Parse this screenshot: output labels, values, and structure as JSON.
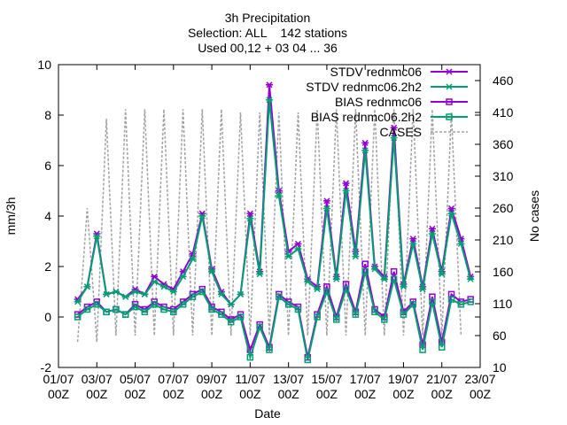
{
  "title_lines": [
    "3h Precipitation",
    "Selection: ALL    142 stations",
    "Used 00,12 + 03 04 ... 36"
  ],
  "chart_data": {
    "type": "line",
    "title": "3h Precipitation",
    "subtitle": [
      "Selection: ALL    142 stations",
      "Used 00,12 + 03 04 ... 36"
    ],
    "xlabel": "Date",
    "ylabel": "mm/3h",
    "y2label": "No cases",
    "xlim": [
      0,
      22
    ],
    "ylim": [
      -2,
      10
    ],
    "y2lim": [
      10,
      485
    ],
    "x_ticks": [
      "01/07 00Z",
      "03/07 00Z",
      "05/07 00Z",
      "07/07 00Z",
      "09/07 00Z",
      "11/07 00Z",
      "13/07 00Z",
      "15/07 00Z",
      "17/07 00Z",
      "19/07 00Z",
      "21/07 00Z",
      "23/07 00Z"
    ],
    "y_ticks": [
      -2,
      0,
      2,
      4,
      6,
      8,
      10
    ],
    "y2_ticks": [
      10,
      60,
      110,
      160,
      210,
      260,
      310,
      360,
      410,
      460
    ],
    "legend_position": "top-right",
    "series": [
      {
        "name": "STDV rednmc06",
        "color": "#9400d3",
        "marker": "x",
        "axis": "y",
        "x": [
          1,
          1.5,
          2,
          2.5,
          3,
          3.5,
          4,
          4.5,
          5,
          5.5,
          6,
          6.5,
          7,
          7.5,
          8,
          8.5,
          9,
          9.5,
          10,
          10.5,
          11,
          11.5,
          12,
          12.5,
          13,
          13.5,
          14,
          14.5,
          15,
          15.5,
          16,
          16.5,
          17,
          17.5,
          18,
          18.5,
          19,
          19.5,
          20,
          20.5,
          21,
          21.5
        ],
        "y": [
          0.7,
          1.2,
          3.3,
          0.9,
          1.0,
          0.8,
          1.1,
          0.9,
          1.6,
          1.3,
          1.1,
          1.8,
          2.5,
          4.1,
          1.9,
          1.0,
          0.5,
          0.9,
          4.1,
          1.8,
          9.2,
          5.0,
          2.6,
          2.9,
          1.5,
          1.2,
          4.6,
          1.6,
          5.3,
          2.6,
          6.9,
          2.0,
          1.6,
          7.5,
          1.3,
          3.1,
          1.2,
          3.5,
          1.8,
          4.3,
          3.1,
          1.6
        ]
      },
      {
        "name": "STDV rednmc06.2h2",
        "color": "#009e73",
        "marker": "x",
        "axis": "y",
        "x": [
          1,
          1.5,
          2,
          2.5,
          3,
          3.5,
          4,
          4.5,
          5,
          5.5,
          6,
          6.5,
          7,
          7.5,
          8,
          8.5,
          9,
          9.5,
          10,
          10.5,
          11,
          11.5,
          12,
          12.5,
          13,
          13.5,
          14,
          14.5,
          15,
          15.5,
          16,
          16.5,
          17,
          17.5,
          18,
          18.5,
          19,
          19.5,
          20,
          20.5,
          21,
          21.5
        ],
        "y": [
          0.6,
          1.2,
          3.2,
          0.9,
          1.0,
          0.8,
          1.0,
          0.9,
          1.4,
          1.2,
          1.0,
          1.6,
          2.3,
          4.0,
          1.8,
          0.9,
          0.5,
          0.9,
          3.9,
          1.7,
          8.6,
          4.8,
          2.4,
          2.7,
          1.4,
          1.1,
          4.3,
          1.5,
          5.0,
          2.4,
          6.6,
          1.9,
          1.5,
          7.1,
          1.2,
          2.9,
          1.1,
          3.3,
          1.7,
          4.1,
          2.9,
          1.5
        ]
      },
      {
        "name": "BIAS rednmc06",
        "color": "#9400d3",
        "marker": "square",
        "axis": "y",
        "x": [
          1,
          1.5,
          2,
          2.5,
          3,
          3.5,
          4,
          4.5,
          5,
          5.5,
          6,
          6.5,
          7,
          7.5,
          8,
          8.5,
          9,
          9.5,
          10,
          10.5,
          11,
          11.5,
          12,
          12.5,
          13,
          13.5,
          14,
          14.5,
          15,
          15.5,
          16,
          16.5,
          17,
          17.5,
          18,
          18.5,
          19,
          19.5,
          20,
          20.5,
          21,
          21.5
        ],
        "y": [
          0.1,
          0.4,
          0.6,
          0.2,
          0.3,
          0.1,
          0.5,
          0.3,
          0.6,
          0.4,
          0.3,
          0.6,
          0.9,
          1.1,
          0.4,
          0.2,
          -0.1,
          0.1,
          -1.3,
          -0.3,
          -1.2,
          0.9,
          0.6,
          0.4,
          -1.6,
          0.1,
          1.2,
          0.0,
          1.3,
          0.2,
          2.1,
          0.3,
          0.0,
          1.8,
          0.2,
          0.6,
          -1.1,
          0.8,
          -1.0,
          0.9,
          0.6,
          0.7
        ]
      },
      {
        "name": "BIAS rednmc06.2h2",
        "color": "#009e73",
        "marker": "square",
        "axis": "y",
        "x": [
          1,
          1.5,
          2,
          2.5,
          3,
          3.5,
          4,
          4.5,
          5,
          5.5,
          6,
          6.5,
          7,
          7.5,
          8,
          8.5,
          9,
          9.5,
          10,
          10.5,
          11,
          11.5,
          12,
          12.5,
          13,
          13.5,
          14,
          14.5,
          15,
          15.5,
          16,
          16.5,
          17,
          17.5,
          18,
          18.5,
          19,
          19.5,
          20,
          20.5,
          21,
          21.5
        ],
        "y": [
          0.0,
          0.3,
          0.5,
          0.2,
          0.3,
          0.1,
          0.4,
          0.2,
          0.5,
          0.3,
          0.2,
          0.5,
          0.8,
          1.0,
          0.3,
          0.1,
          -0.2,
          0.0,
          -1.6,
          -0.4,
          -1.3,
          0.8,
          0.5,
          0.3,
          -1.7,
          0.0,
          1.0,
          -0.1,
          1.1,
          0.1,
          1.8,
          0.2,
          -0.1,
          1.5,
          0.1,
          0.5,
          -1.3,
          0.6,
          -1.2,
          0.7,
          0.5,
          0.6
        ]
      },
      {
        "name": "CASES",
        "color": "#a0a0a0",
        "marker": "none",
        "dashed": true,
        "axis": "y2",
        "x": [
          1,
          1.5,
          2,
          2.5,
          3,
          3.5,
          4,
          4.5,
          5,
          5.5,
          6,
          6.5,
          7,
          7.5,
          8,
          8.5,
          9,
          9.5,
          10,
          10.5,
          11,
          11.5,
          12,
          12.5,
          13,
          13.5,
          14,
          14.5,
          15,
          15.5,
          16,
          16.5,
          17,
          17.5,
          18,
          18.5,
          19,
          19.5,
          20,
          20.5,
          21
        ],
        "y": [
          50,
          260,
          50,
          400,
          60,
          415,
          60,
          415,
          60,
          415,
          60,
          415,
          60,
          415,
          60,
          415,
          60,
          410,
          60,
          410,
          60,
          410,
          60,
          410,
          60,
          415,
          60,
          415,
          60,
          415,
          60,
          415,
          60,
          415,
          60,
          415,
          60,
          415,
          60,
          410,
          60
        ]
      }
    ]
  }
}
